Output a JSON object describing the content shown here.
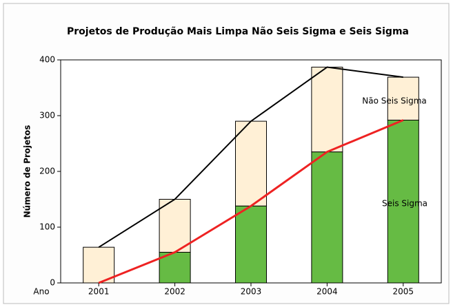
{
  "chart_data": {
    "type": "stacked_bar_line",
    "title": "Projetos de Produção Mais Limpa Não Seis Sigma e Seis Sigma",
    "y_label": "Número de Projetos",
    "x_label": "Ano",
    "categories": [
      "2001",
      "2002",
      "2003",
      "2004",
      "2005"
    ],
    "series": [
      {
        "name": "Seis Sigma",
        "color": "#66bb44",
        "line_color": "#ee2222",
        "values": [
          0,
          55,
          138,
          235,
          292
        ]
      },
      {
        "name": "Não Seis Sigma",
        "color": "#fff0d6",
        "line_color": "#000000",
        "values": [
          64,
          95,
          152,
          152,
          77
        ]
      }
    ],
    "ylim": [
      0,
      400
    ],
    "yticks": [
      0,
      100,
      200,
      300,
      400
    ]
  }
}
